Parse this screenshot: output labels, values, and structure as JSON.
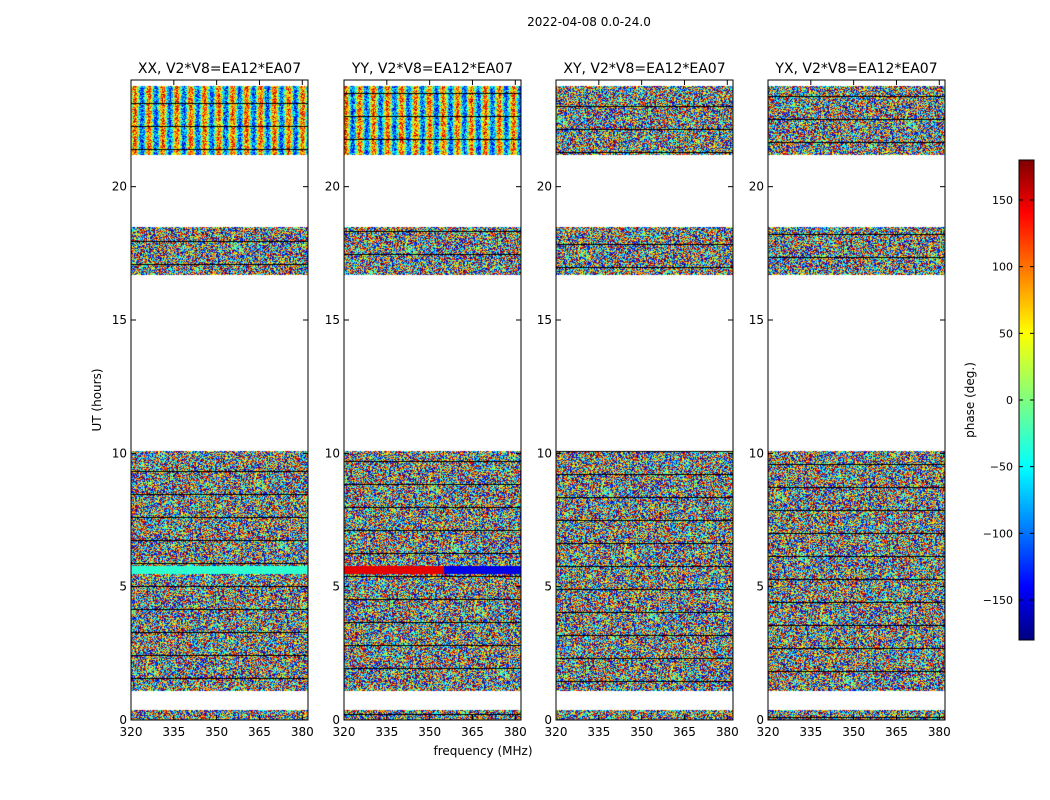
{
  "figure_title": "2022-04-08 0.0-24.0",
  "chart_data": {
    "type": "heatmap",
    "title": "2022-04-08 0.0-24.0",
    "xlabel": "frequency (MHz)",
    "ylabel": "UT (hours)",
    "xlim": [
      320,
      382
    ],
    "ylim": [
      0,
      24
    ],
    "xticks": [
      320,
      335,
      350,
      365,
      380
    ],
    "yticks": [
      0,
      5,
      10,
      15,
      20
    ],
    "panels": [
      {
        "title": "XX, V2*V8=EA12*EA07",
        "polarization": "XX",
        "baseline": "V2*V8=EA12*EA07"
      },
      {
        "title": "YY, V2*V8=EA12*EA07",
        "polarization": "YY",
        "baseline": "V2*V8=EA12*EA07"
      },
      {
        "title": "XY, V2*V8=EA12*EA07",
        "polarization": "XY",
        "baseline": "V2*V8=EA12*EA07"
      },
      {
        "title": "YX, V2*V8=EA12*EA07",
        "polarization": "YX",
        "baseline": "V2*V8=EA12*EA07"
      }
    ],
    "data_time_ranges_hours": [
      [
        0.0,
        0.4
      ],
      [
        1.1,
        10.1
      ],
      [
        16.7,
        18.5
      ],
      [
        21.2,
        23.8
      ]
    ],
    "colorbar": {
      "label": "phase (deg.)",
      "min": -180,
      "max": 180,
      "ticks": [
        -150,
        -100,
        -50,
        0,
        50,
        100,
        150
      ],
      "colormap": "jet"
    }
  }
}
